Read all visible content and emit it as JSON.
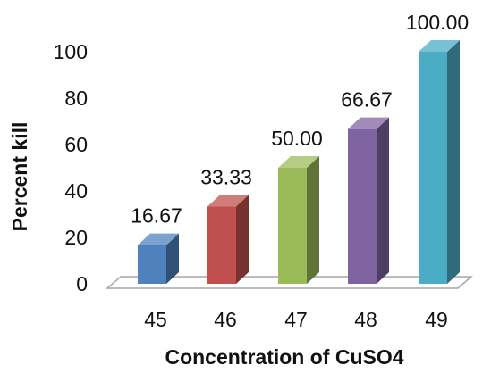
{
  "chart_data": {
    "type": "bar",
    "title": "",
    "xlabel": "Concentration of CuSO4",
    "ylabel": "Percent kill",
    "ylim": [
      0,
      100
    ],
    "y_ticks": [
      "0",
      "20",
      "40",
      "60",
      "80",
      "100"
    ],
    "grid": false,
    "legend": "none",
    "categories": [
      "45",
      "46",
      "47",
      "48",
      "49"
    ],
    "values": [
      16.67,
      33.33,
      50.0,
      66.67,
      100.0
    ],
    "data_labels": [
      "16.67",
      "33.33",
      "50.00",
      "66.67",
      "100.00"
    ],
    "colors": [
      "#4f81bd",
      "#c0504d",
      "#9bbb59",
      "#8064a2",
      "#4bacc6"
    ]
  }
}
